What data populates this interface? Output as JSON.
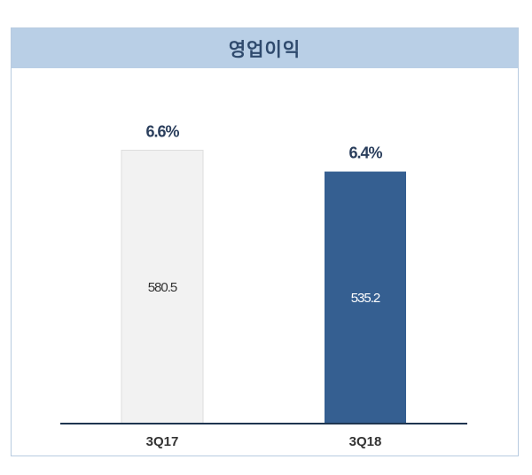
{
  "chart_data": {
    "type": "bar",
    "title": "영업이익",
    "categories": [
      "3Q17",
      "3Q18"
    ],
    "values": [
      580.5,
      535.2
    ],
    "value_labels": [
      "580.5",
      "535.2"
    ],
    "margin_labels": [
      "6.6%",
      "6.4%"
    ],
    "bar_colors": [
      "#f2f2f2",
      "#355f91"
    ],
    "value_label_colors": [
      "#333333",
      "#ffffff"
    ],
    "ylim": [
      0,
      700
    ],
    "grid": false,
    "legend": "none"
  }
}
